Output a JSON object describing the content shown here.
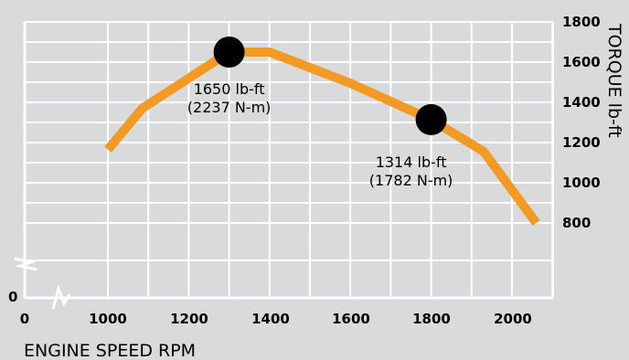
{
  "chart_data": {
    "type": "line",
    "xlabel": "ENGINE SPEED RPM",
    "ylabel": "TORQUE lb-ft",
    "xlim": [
      800,
      2100
    ],
    "ylim": [
      800,
      1800
    ],
    "x_ticks": [
      "0",
      "1000",
      "1200",
      "1400",
      "1600",
      "1800",
      "2000"
    ],
    "y_ticks": [
      "0",
      "800",
      "1000",
      "1200",
      "1400",
      "1600",
      "1800"
    ],
    "grid": true,
    "axis_break": true,
    "line_color": "#f39a24",
    "series": [
      {
        "x": [
          1000,
          1085,
          1300,
          1400,
          1600,
          1800,
          1930,
          2060
        ],
        "y": [
          1165,
          1370,
          1650,
          1650,
          1495,
          1314,
          1155,
          800
        ]
      }
    ],
    "annotations": [
      {
        "x": 1300,
        "y": 1650,
        "line1": "1650 lb-ft",
        "line2": "(2237 N-m)"
      },
      {
        "x": 1800,
        "y": 1314,
        "line1": "1314 lb-ft",
        "line2": "(1782 N-m)"
      }
    ]
  }
}
